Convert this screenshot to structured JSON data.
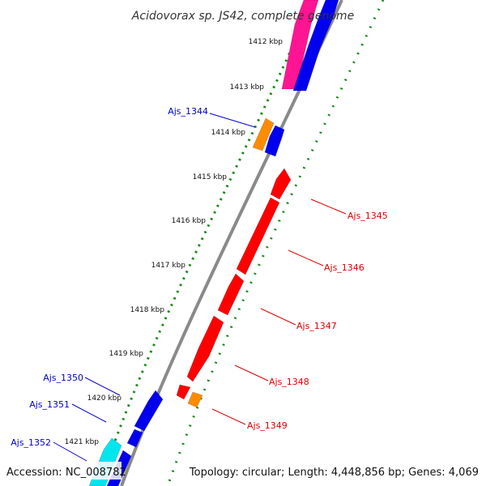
{
  "title": "Acidovorax sp. JS42, complete genome",
  "accession_text": "Accession: NC_008782",
  "summary_text": "Topology: circular; Length: 4,448,856 bp; Genes: 4,069",
  "colors": {
    "backbone": "#8a8a8a",
    "tick_dots": "#1a8a1a",
    "forward_label": "#0000cc",
    "reverse_label": "#dd0000",
    "blue": "#0000ee",
    "red": "#ff0000",
    "orange": "#ff8c00",
    "magenta": "#ff1493",
    "cyan": "#00e5ee"
  },
  "scale_labels": [
    {
      "kbp": 1412,
      "text": "1412 kbp"
    },
    {
      "kbp": 1413,
      "text": "1413 kbp"
    },
    {
      "kbp": 1414,
      "text": "1414 kbp"
    },
    {
      "kbp": 1415,
      "text": "1415 kbp"
    },
    {
      "kbp": 1416,
      "text": "1416 kbp"
    },
    {
      "kbp": 1417,
      "text": "1417 kbp"
    },
    {
      "kbp": 1418,
      "text": "1418 kbp"
    },
    {
      "kbp": 1419,
      "text": "1419 kbp"
    },
    {
      "kbp": 1420,
      "text": "1420 kbp"
    },
    {
      "kbp": 1421,
      "text": "1421 kbp"
    }
  ],
  "gene_labels": [
    {
      "name": "Ajs_1344",
      "strand": "forward"
    },
    {
      "name": "Ajs_1345",
      "strand": "reverse"
    },
    {
      "name": "Ajs_1346",
      "strand": "reverse"
    },
    {
      "name": "Ajs_1347",
      "strand": "reverse"
    },
    {
      "name": "Ajs_1348",
      "strand": "reverse"
    },
    {
      "name": "Ajs_1349",
      "strand": "reverse"
    },
    {
      "name": "Ajs_1350",
      "strand": "forward"
    },
    {
      "name": "Ajs_1351",
      "strand": "forward"
    },
    {
      "name": "Ajs_1352",
      "strand": "forward"
    }
  ]
}
